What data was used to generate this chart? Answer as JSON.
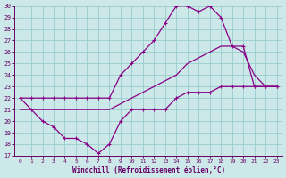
{
  "xlabel": "Windchill (Refroidissement éolien,°C)",
  "background_color": "#cce8e8",
  "line_color": "#880088",
  "grid_color": "#99cccc",
  "xlim": [
    -0.5,
    23.5
  ],
  "ylim": [
    17,
    30
  ],
  "yticks": [
    17,
    18,
    19,
    20,
    21,
    22,
    23,
    24,
    25,
    26,
    27,
    28,
    29,
    30
  ],
  "xticks": [
    0,
    1,
    2,
    3,
    4,
    5,
    6,
    7,
    8,
    9,
    10,
    11,
    12,
    13,
    14,
    15,
    16,
    17,
    18,
    19,
    20,
    21,
    22,
    23
  ],
  "series": [
    {
      "x": [
        0,
        1,
        2,
        3,
        4,
        5,
        6,
        7,
        8,
        9,
        10,
        11,
        12,
        13,
        14,
        15,
        16,
        17,
        18,
        19,
        20,
        21,
        22,
        23
      ],
      "y": [
        22,
        22,
        22,
        22,
        22,
        22,
        22,
        22,
        22,
        24,
        25,
        26,
        27,
        28.5,
        30,
        30,
        29.5,
        30,
        29,
        26.5,
        26.5,
        23,
        23,
        23
      ],
      "marker": "+"
    },
    {
      "x": [
        0,
        1,
        2,
        3,
        4,
        5,
        6,
        7,
        8,
        9,
        10,
        11,
        12,
        13,
        14,
        15,
        16,
        17,
        18,
        19,
        20,
        21,
        22,
        23
      ],
      "y": [
        21,
        21,
        21,
        21,
        21,
        21,
        21,
        21,
        21,
        21.5,
        22,
        22.5,
        23,
        23.5,
        24,
        25,
        25.5,
        26,
        26.5,
        26.5,
        26,
        24,
        23,
        23
      ],
      "marker": null
    },
    {
      "x": [
        0,
        1,
        2,
        3,
        4,
        5,
        6,
        7,
        8,
        9,
        10,
        11,
        12,
        13,
        14,
        15,
        16,
        17,
        18,
        19,
        20,
        21,
        22,
        23
      ],
      "y": [
        22,
        21,
        20,
        19.5,
        18.5,
        18.5,
        18,
        17.2,
        18,
        20,
        21,
        21,
        21,
        21,
        22,
        22.5,
        22.5,
        22.5,
        23,
        23,
        23,
        23,
        23,
        23
      ],
      "marker": "+"
    }
  ]
}
